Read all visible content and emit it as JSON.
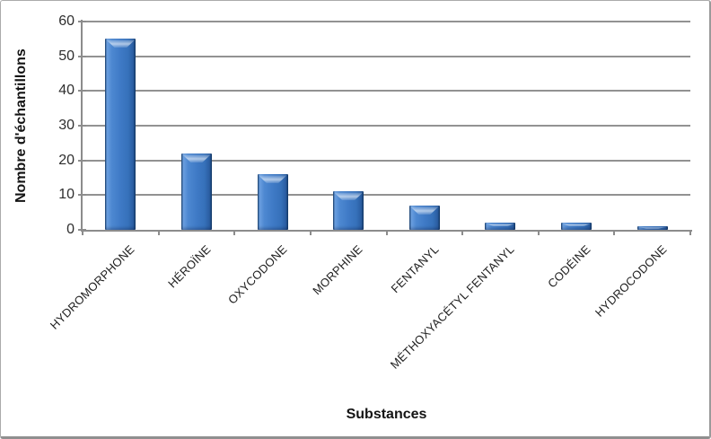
{
  "chart_data": {
    "type": "bar",
    "categories": [
      "HYDROMORPHONE",
      "HÉROÏNE",
      "OXYCODONE",
      "MORPHINE",
      "FENTANYL",
      "MÉTHOXYACÉTYL FENTANYL",
      "CODÉINE",
      "HYDROCODONE"
    ],
    "values": [
      55,
      22,
      16,
      11,
      7,
      2,
      2,
      1
    ],
    "title": "",
    "xlabel": "Substances",
    "ylabel": "Nombre d'échantillons",
    "ylim": [
      0,
      60
    ],
    "yticks": [
      0,
      10,
      20,
      30,
      40,
      50,
      60
    ],
    "grid": true,
    "legend_position": "none",
    "colors": {
      "bar_main": "#3f7ac6",
      "bar_edge_dark": "#16406f",
      "bar_highlight": "#a9cdf2",
      "axis": "#8c8c8c",
      "gridline": "#929292",
      "tick_text": "#2e2e2e",
      "label_text": "#1f1f1f",
      "title_text": "#141414",
      "background": "#ffffff",
      "frame_border": "#ababab"
    }
  }
}
